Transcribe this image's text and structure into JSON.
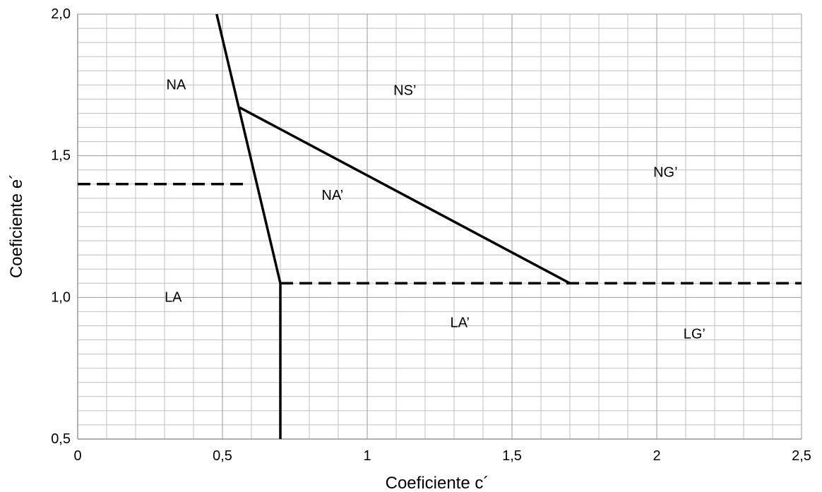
{
  "chart_data": {
    "type": "line",
    "xlabel": "Coeficiente c´",
    "ylabel": "Coeficiente e´",
    "xlim": [
      0,
      2.5
    ],
    "ylim": [
      0.5,
      2.0
    ],
    "x_ticks": [
      {
        "value": 0,
        "label": "0"
      },
      {
        "value": 0.5,
        "label": "0,5"
      },
      {
        "value": 1,
        "label": "1"
      },
      {
        "value": 1.5,
        "label": "1,5"
      },
      {
        "value": 2,
        "label": "2"
      },
      {
        "value": 2.5,
        "label": "2,5"
      }
    ],
    "y_ticks": [
      {
        "value": 0.5,
        "label": "0,5"
      },
      {
        "value": 1.0,
        "label": "1,0"
      },
      {
        "value": 1.5,
        "label": "1,5"
      },
      {
        "value": 2.0,
        "label": "2,0"
      }
    ],
    "grid": true,
    "minor_grid_step_x": 0.1,
    "minor_grid_step_y": 0.05,
    "major_grid_color": "#999999",
    "minor_grid_color": "#c0c0c0",
    "line_color": "#000000",
    "series": [
      {
        "style": "solid",
        "points": [
          [
            0.48,
            2.0
          ],
          [
            0.7,
            1.05
          ],
          [
            0.7,
            0.5
          ]
        ]
      },
      {
        "style": "solid",
        "points": [
          [
            0.56,
            1.67
          ],
          [
            1.7,
            1.05
          ]
        ]
      },
      {
        "style": "dashed",
        "points": [
          [
            0,
            1.4
          ],
          [
            0.59,
            1.4
          ]
        ]
      },
      {
        "style": "dashed",
        "points": [
          [
            0.7,
            1.05
          ],
          [
            2.5,
            1.05
          ]
        ]
      }
    ],
    "annotations": [
      {
        "text": "NA",
        "x": 0.34,
        "y": 1.75
      },
      {
        "text": "NS’",
        "x": 1.13,
        "y": 1.73
      },
      {
        "text": "NG’",
        "x": 2.03,
        "y": 1.44
      },
      {
        "text": "NA’",
        "x": 0.88,
        "y": 1.36
      },
      {
        "text": "LA",
        "x": 0.33,
        "y": 1.0
      },
      {
        "text": "LA’",
        "x": 1.32,
        "y": 0.91
      },
      {
        "text": "LG’",
        "x": 2.13,
        "y": 0.87
      }
    ]
  }
}
